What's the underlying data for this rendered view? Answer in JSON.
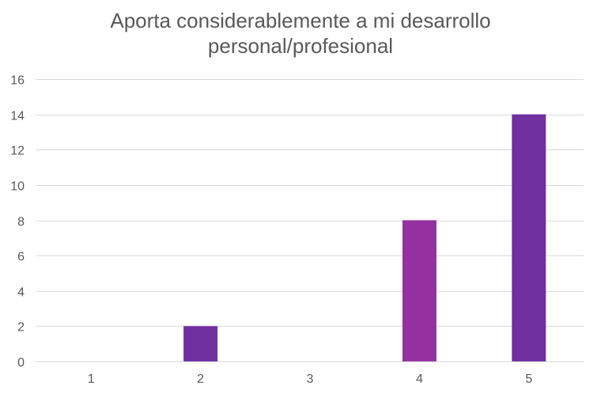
{
  "chart_data": {
    "type": "bar",
    "title_lines": [
      "Aporta considerablemente a mi desarrollo",
      "personal/profesional"
    ],
    "categories": [
      "1",
      "2",
      "3",
      "4",
      "5"
    ],
    "values": [
      0,
      2,
      0,
      8,
      14
    ],
    "bar_colors": [
      "#7030a0",
      "#7030a0",
      "#7030a0",
      "#9530a0",
      "#7030a0"
    ],
    "ylim": [
      0,
      16
    ],
    "yticks": [
      "0",
      "2",
      "4",
      "6",
      "8",
      "10",
      "12",
      "14",
      "16"
    ],
    "xlabel": "",
    "ylabel": "",
    "grid": true,
    "legend": "none"
  }
}
